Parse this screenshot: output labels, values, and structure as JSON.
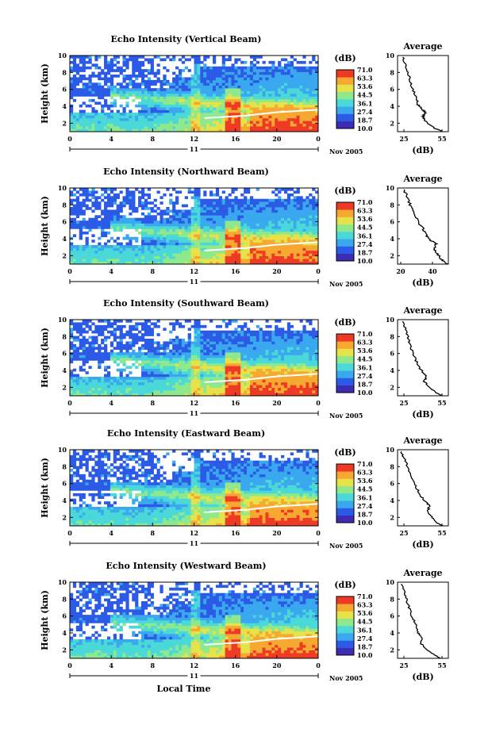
{
  "chart_data": [
    {
      "type": "heatmap",
      "title": "Echo Intensity (Vertical Beam)",
      "ylabel": "Height (km)",
      "x_ticks": [
        "0",
        "4",
        "8",
        "12",
        "16",
        "20",
        "0"
      ],
      "y_ticks": [
        "2",
        "4",
        "6",
        "8",
        "10"
      ],
      "ylim": [
        1,
        10
      ],
      "xlim": [
        0,
        24
      ],
      "date_day": "11",
      "date_month": "Nov 2005",
      "colorbar": {
        "unit": "(dB)",
        "ticks": [
          "71.0",
          "63.3",
          "53.6",
          "44.5",
          "36.1",
          "27.4",
          "18.7",
          "10.0"
        ]
      },
      "average": {
        "title": "Average",
        "xlabel": "(dB)",
        "x_ticks": [
          "25",
          "55"
        ],
        "xlim": [
          20,
          60
        ],
        "y_ticks": [
          "2",
          "4",
          "6",
          "8",
          "10"
        ],
        "profile": [
          [
            55,
            1
          ],
          [
            48,
            1.5
          ],
          [
            42,
            2.2
          ],
          [
            40,
            2.8
          ],
          [
            42,
            3.3
          ],
          [
            39,
            3.7
          ],
          [
            36,
            4.2
          ],
          [
            35,
            5
          ],
          [
            32,
            6
          ],
          [
            30,
            7
          ],
          [
            28,
            8
          ],
          [
            26,
            9
          ],
          [
            24,
            9.8
          ]
        ]
      }
    },
    {
      "type": "heatmap",
      "title": "Echo Intensity (Northward Beam)",
      "ylabel": "Height (km)",
      "x_ticks": [
        "0",
        "4",
        "8",
        "12",
        "16",
        "20",
        "0"
      ],
      "y_ticks": [
        "2",
        "4",
        "6",
        "8",
        "10"
      ],
      "ylim": [
        1,
        10
      ],
      "xlim": [
        0,
        24
      ],
      "date_day": "11",
      "date_month": "Nov 2005",
      "colorbar": {
        "unit": "(dB)",
        "ticks": [
          "71.0",
          "63.3",
          "53.6",
          "44.5",
          "36.1",
          "27.4",
          "18.7",
          "10.0"
        ]
      },
      "average": {
        "title": "Average",
        "xlabel": "(dB)",
        "x_ticks": [
          "20",
          "40"
        ],
        "xlim": [
          18,
          50
        ],
        "y_ticks": [
          "2",
          "4",
          "6",
          "8",
          "10"
        ],
        "profile": [
          [
            50,
            1
          ],
          [
            46,
            1.5
          ],
          [
            43,
            2.2
          ],
          [
            41,
            2.8
          ],
          [
            42,
            3.4
          ],
          [
            39,
            3.8
          ],
          [
            36,
            4.4
          ],
          [
            34,
            5.2
          ],
          [
            31,
            6
          ],
          [
            28,
            7
          ],
          [
            26,
            8
          ],
          [
            24,
            9
          ],
          [
            22,
            9.8
          ]
        ]
      }
    },
    {
      "type": "heatmap",
      "title": "Echo Intensity (Southward Beam)",
      "ylabel": "Height (km)",
      "x_ticks": [
        "0",
        "4",
        "8",
        "12",
        "16",
        "20",
        "0"
      ],
      "y_ticks": [
        "2",
        "4",
        "6",
        "8",
        "10"
      ],
      "ylim": [
        1,
        10
      ],
      "xlim": [
        0,
        24
      ],
      "date_day": "11",
      "date_month": "Nov 2005",
      "colorbar": {
        "unit": "(dB)",
        "ticks": [
          "71.0",
          "63.3",
          "53.6",
          "44.5",
          "36.1",
          "27.4",
          "18.7",
          "10.0"
        ]
      },
      "average": {
        "title": "Average",
        "xlabel": "(dB)",
        "x_ticks": [
          "25",
          "55"
        ],
        "xlim": [
          20,
          60
        ],
        "y_ticks": [
          "2",
          "4",
          "6",
          "8",
          "10"
        ],
        "profile": [
          [
            56,
            1
          ],
          [
            50,
            1.4
          ],
          [
            45,
            2
          ],
          [
            41,
            2.7
          ],
          [
            43,
            3.3
          ],
          [
            40,
            3.8
          ],
          [
            37,
            4.3
          ],
          [
            35,
            5
          ],
          [
            32,
            6
          ],
          [
            30,
            7
          ],
          [
            28,
            8
          ],
          [
            26,
            9
          ],
          [
            24,
            9.8
          ]
        ]
      }
    },
    {
      "type": "heatmap",
      "title": "Echo Intensity (Eastward Beam)",
      "ylabel": "Height (km)",
      "x_ticks": [
        "0",
        "4",
        "8",
        "12",
        "16",
        "20",
        "0"
      ],
      "y_ticks": [
        "2",
        "4",
        "6",
        "8",
        "10"
      ],
      "ylim": [
        1,
        10
      ],
      "xlim": [
        0,
        24
      ],
      "date_day": "11",
      "date_month": "Nov 2005",
      "colorbar": {
        "unit": "(dB)",
        "ticks": [
          "71.0",
          "63.3",
          "53.6",
          "44.5",
          "36.1",
          "27.4",
          "18.7",
          "10.0"
        ]
      },
      "average": {
        "title": "Average",
        "xlabel": "(dB)",
        "x_ticks": [
          "25",
          "55"
        ],
        "xlim": [
          20,
          60
        ],
        "y_ticks": [
          "2",
          "4",
          "6",
          "8",
          "10"
        ],
        "profile": [
          [
            55,
            1
          ],
          [
            50,
            1.5
          ],
          [
            46,
            2.2
          ],
          [
            44,
            2.8
          ],
          [
            45,
            3.4
          ],
          [
            42,
            3.8
          ],
          [
            39,
            4.4
          ],
          [
            36,
            5.2
          ],
          [
            33,
            6
          ],
          [
            30,
            7
          ],
          [
            28,
            8
          ],
          [
            25,
            9
          ],
          [
            23,
            9.8
          ]
        ]
      }
    },
    {
      "type": "heatmap",
      "title": "Echo Intensity (Westward Beam)",
      "ylabel": "Height (km)",
      "xlabel": "Local Time",
      "x_ticks": [
        "0",
        "4",
        "8",
        "12",
        "16",
        "20",
        "0"
      ],
      "y_ticks": [
        "2",
        "4",
        "6",
        "8",
        "10"
      ],
      "ylim": [
        1,
        10
      ],
      "xlim": [
        0,
        24
      ],
      "date_day": "11",
      "date_month": "Nov 2005",
      "colorbar": {
        "unit": "(dB)",
        "ticks": [
          "71.0",
          "63.3",
          "53.6",
          "44.5",
          "36.1",
          "27.4",
          "18.7",
          "10.0"
        ]
      },
      "average": {
        "title": "Average",
        "xlabel": "(dB)",
        "x_ticks": [
          "25",
          "55"
        ],
        "xlim": [
          20,
          60
        ],
        "y_ticks": [
          "2",
          "4",
          "6",
          "8",
          "10"
        ],
        "profile": [
          [
            54,
            1
          ],
          [
            48,
            1.5
          ],
          [
            42,
            2.2
          ],
          [
            38,
            2.8
          ],
          [
            40,
            3.4
          ],
          [
            37,
            3.8
          ],
          [
            35,
            4.4
          ],
          [
            34,
            5.2
          ],
          [
            31,
            6
          ],
          [
            29,
            7
          ],
          [
            27,
            8
          ],
          [
            25,
            9
          ],
          [
            23,
            9.8
          ]
        ]
      }
    }
  ],
  "colors": {
    "scale": [
      "#3c2cb4",
      "#2a5ae6",
      "#3aa8ee",
      "#4ad8d8",
      "#8ee88c",
      "#e6e24a",
      "#f6a830",
      "#ee3a24"
    ],
    "line": "#000000"
  }
}
